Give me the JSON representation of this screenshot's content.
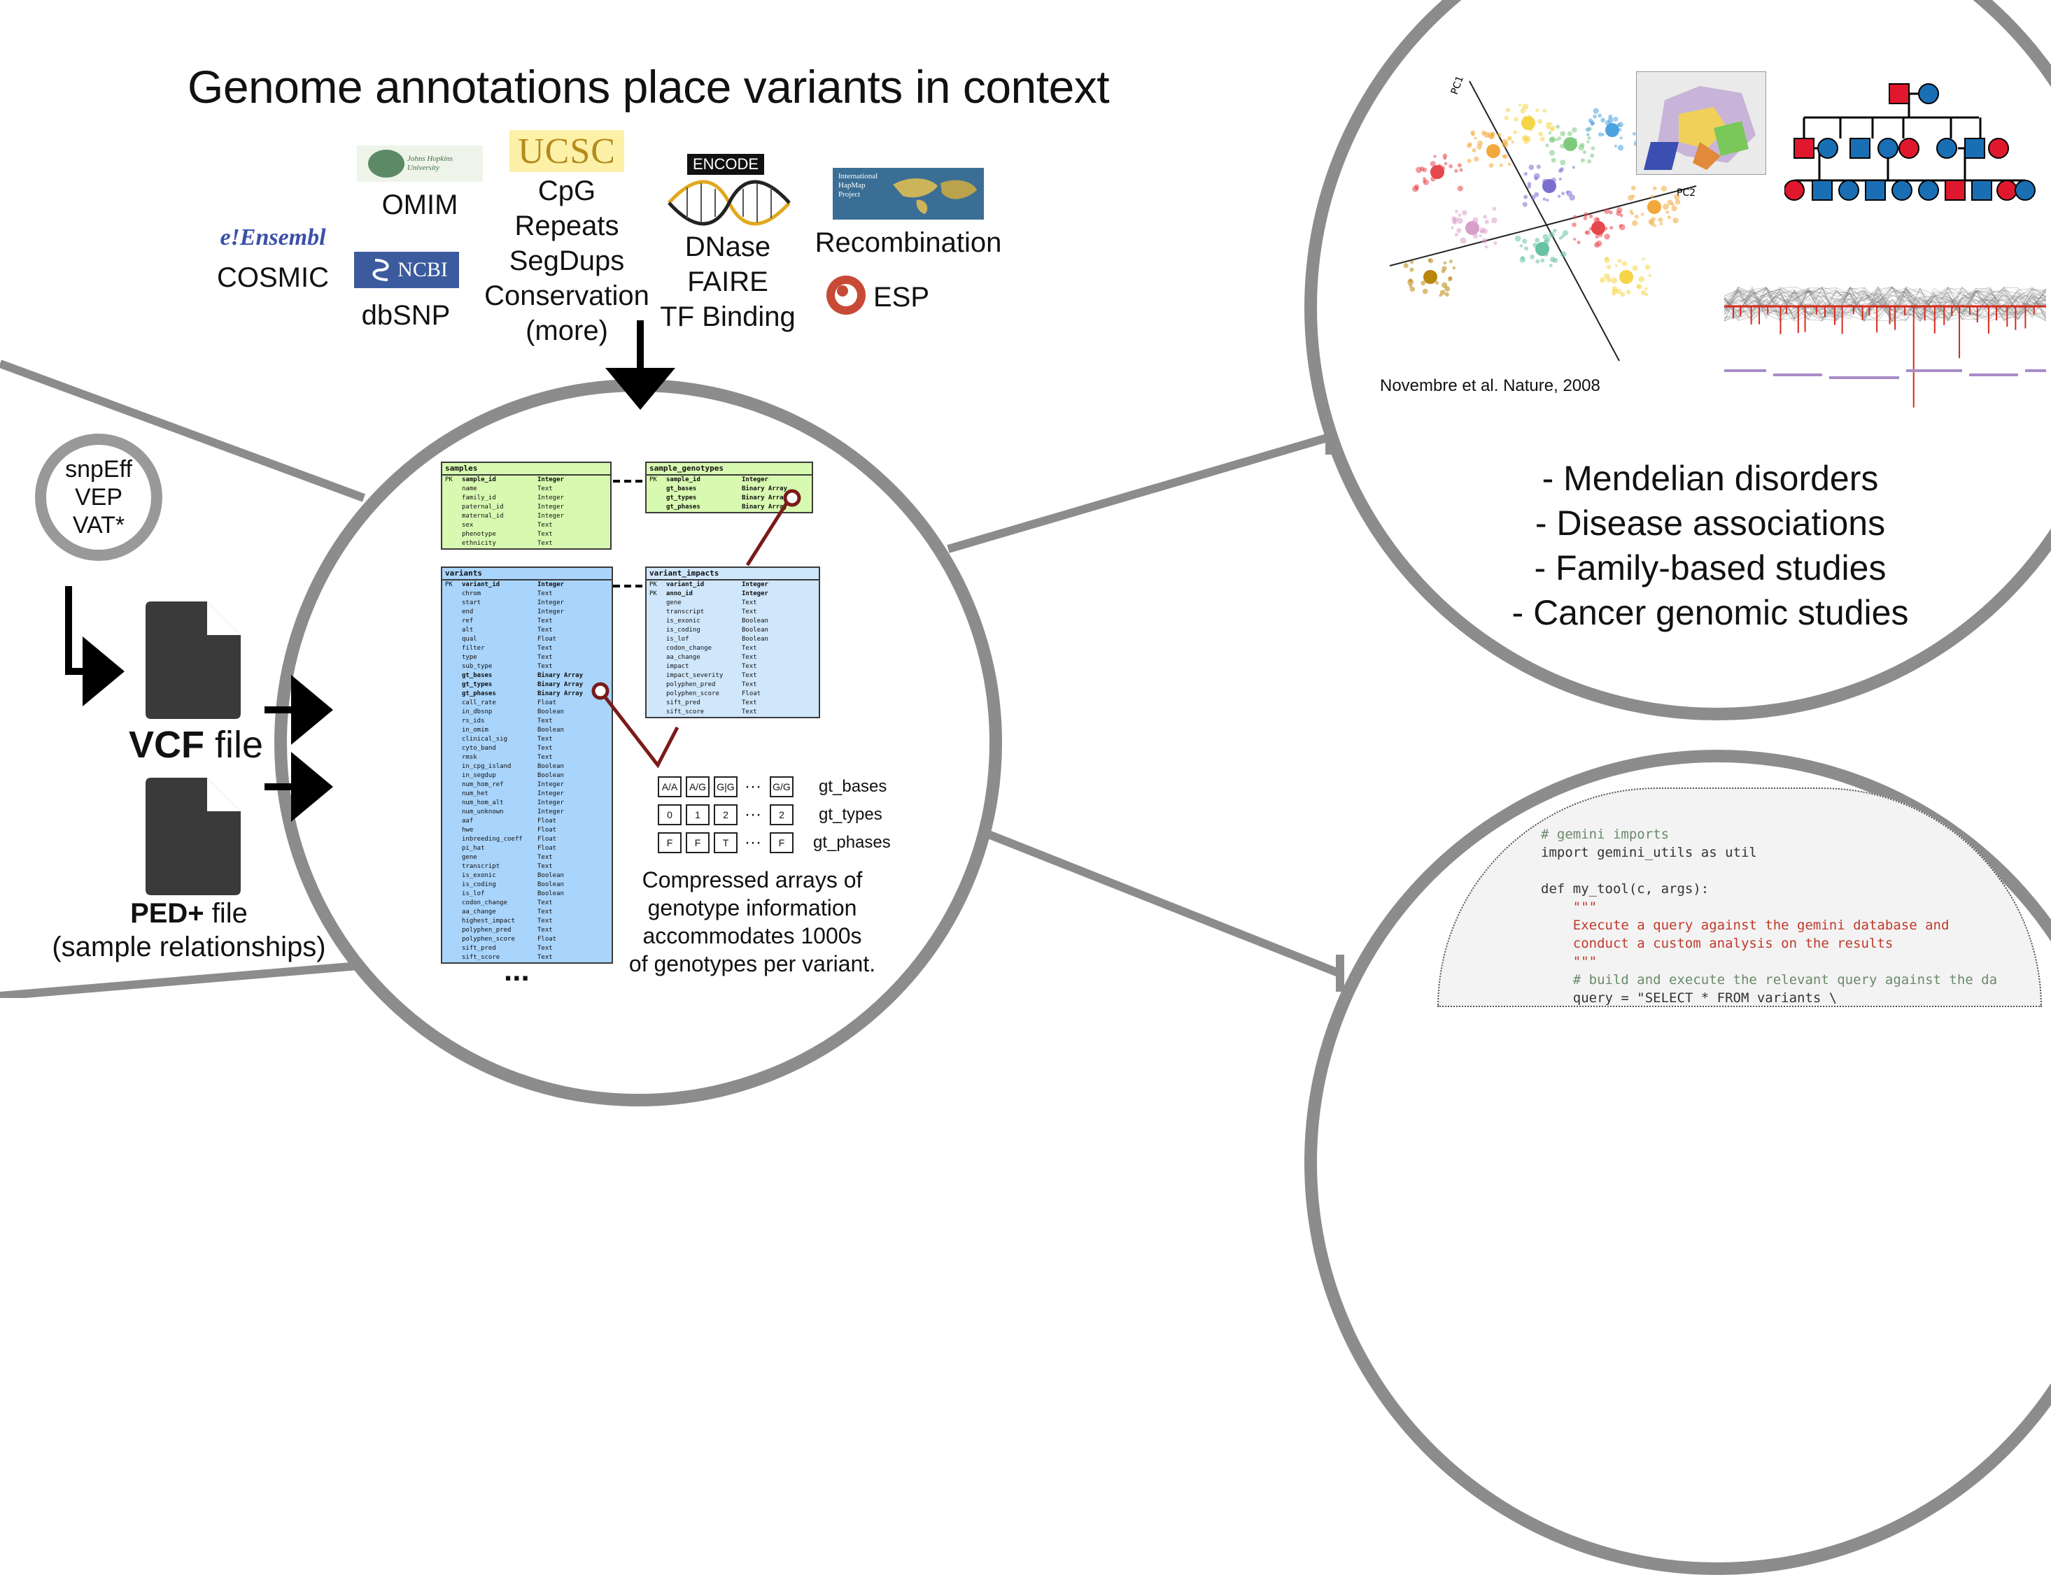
{
  "title": "Genome annotations place variants in context",
  "sources": {
    "ensembl_logo": "e!Ensembl",
    "cosmic": "COSMIC",
    "jhu_logo": "Johns Hopkins University",
    "omim": "OMIM",
    "ncbi_logo": "NCBI",
    "dbsnp": "dbSNP",
    "ucsc_logo": "UCSC",
    "ucsc_items": [
      "CpG",
      "Repeats",
      "SegDups",
      "Conservation",
      "(more)"
    ],
    "encode_logo": "ENCODE",
    "encode_items": [
      "DNase",
      "FAIRE",
      "TF Binding"
    ],
    "hapmap_logo": "International HapMap Project",
    "recombination": "Recombination",
    "esp": "ESP"
  },
  "annotators": [
    "snpEff",
    "VEP",
    "VAT*"
  ],
  "vcf": {
    "bold": "VCF",
    "rest": " file"
  },
  "ped": {
    "bold": "PED+",
    "rest": " file",
    "sub": "(sample relationships)"
  },
  "schema": {
    "samples": {
      "name": "samples",
      "rows": [
        [
          "PK",
          "sample_id",
          "Integer"
        ],
        [
          "",
          "name",
          "Text"
        ],
        [
          "",
          "family_id",
          "Integer"
        ],
        [
          "",
          "paternal_id",
          "Integer"
        ],
        [
          "",
          "maternal_id",
          "Integer"
        ],
        [
          "",
          "sex",
          "Text"
        ],
        [
          "",
          "phenotype",
          "Text"
        ],
        [
          "",
          "ethnicity",
          "Text"
        ]
      ]
    },
    "sample_genotypes": {
      "name": "sample_genotypes",
      "rows": [
        [
          "PK",
          "sample_id",
          "Integer"
        ],
        [
          "",
          "gt_bases",
          "Binary Array"
        ],
        [
          "",
          "gt_types",
          "Binary Array"
        ],
        [
          "",
          "gt_phases",
          "Binary Array"
        ]
      ]
    },
    "variants": {
      "name": "variants",
      "rows": [
        [
          "PK",
          "variant_id",
          "Integer"
        ],
        [
          "",
          "chrom",
          "Text"
        ],
        [
          "",
          "start",
          "Integer"
        ],
        [
          "",
          "end",
          "Integer"
        ],
        [
          "",
          "ref",
          "Text"
        ],
        [
          "",
          "alt",
          "Text"
        ],
        [
          "",
          "qual",
          "Float"
        ],
        [
          "",
          "filter",
          "Text"
        ],
        [
          "",
          "type",
          "Text"
        ],
        [
          "",
          "sub_type",
          "Text"
        ],
        [
          "",
          "gt_bases",
          "Binary Array"
        ],
        [
          "",
          "gt_types",
          "Binary Array"
        ],
        [
          "",
          "gt_phases",
          "Binary Array"
        ],
        [
          "",
          "call_rate",
          "Float"
        ],
        [
          "",
          "in_dbsnp",
          "Boolean"
        ],
        [
          "",
          "rs_ids",
          "Text"
        ],
        [
          "",
          "in_omim",
          "Boolean"
        ],
        [
          "",
          "clinical_sig",
          "Text"
        ],
        [
          "",
          "cyto_band",
          "Text"
        ],
        [
          "",
          "rmsk",
          "Text"
        ],
        [
          "",
          "in_cpg_island",
          "Boolean"
        ],
        [
          "",
          "in_segdup",
          "Boolean"
        ],
        [
          "",
          "num_hom_ref",
          "Integer"
        ],
        [
          "",
          "num_het",
          "Integer"
        ],
        [
          "",
          "num_hom_alt",
          "Integer"
        ],
        [
          "",
          "num_unknown",
          "Integer"
        ],
        [
          "",
          "aaf",
          "Float"
        ],
        [
          "",
          "hwe",
          "Float"
        ],
        [
          "",
          "inbreeding_coeff",
          "Float"
        ],
        [
          "",
          "pi_hat",
          "Float"
        ],
        [
          "",
          "gene",
          "Text"
        ],
        [
          "",
          "transcript",
          "Text"
        ],
        [
          "",
          "is_exonic",
          "Boolean"
        ],
        [
          "",
          "is_coding",
          "Boolean"
        ],
        [
          "",
          "is_lof",
          "Boolean"
        ],
        [
          "",
          "codon_change",
          "Text"
        ],
        [
          "",
          "aa_change",
          "Text"
        ],
        [
          "",
          "highest_impact",
          "Text"
        ],
        [
          "",
          "polyphen_pred",
          "Text"
        ],
        [
          "",
          "polyphen_score",
          "Float"
        ],
        [
          "",
          "sift_pred",
          "Text"
        ],
        [
          "",
          "sift_score",
          "Text"
        ]
      ]
    },
    "variant_impacts": {
      "name": "variant_impacts",
      "rows": [
        [
          "PK",
          "variant_id",
          "Integer"
        ],
        [
          "PK",
          "anno_id",
          "Integer"
        ],
        [
          "",
          "gene",
          "Text"
        ],
        [
          "",
          "transcript",
          "Text"
        ],
        [
          "",
          "is_exonic",
          "Boolean"
        ],
        [
          "",
          "is_coding",
          "Boolean"
        ],
        [
          "",
          "is_lof",
          "Boolean"
        ],
        [
          "",
          "codon_change",
          "Text"
        ],
        [
          "",
          "aa_change",
          "Text"
        ],
        [
          "",
          "impact",
          "Text"
        ],
        [
          "",
          "impact_severity",
          "Text"
        ],
        [
          "",
          "polyphen_pred",
          "Text"
        ],
        [
          "",
          "polyphen_score",
          "Float"
        ],
        [
          "",
          "sift_pred",
          "Text"
        ],
        [
          "",
          "sift_score",
          "Text"
        ]
      ]
    },
    "more": "..."
  },
  "genotype_arrays": {
    "gt_bases": {
      "label": "gt_bases",
      "cells": [
        "A/A",
        "A/G",
        "G|G"
      ],
      "last": "G/G"
    },
    "gt_types": {
      "label": "gt_types",
      "cells": [
        "0",
        "1",
        "2"
      ],
      "last": "2"
    },
    "gt_phases": {
      "label": "gt_phases",
      "cells": [
        "F",
        "F",
        "T"
      ],
      "last": "F"
    },
    "ellipsis": "···",
    "caption": [
      "Compressed arrays of",
      "genotype information",
      "accommodates 1000s",
      "of genotypes per variant."
    ]
  },
  "applications": {
    "citation": "Novembre et al. Nature, 2008",
    "pca_axes": [
      "PC1",
      "PC2"
    ],
    "uses": [
      "- Mendelian disorders",
      "- Disease associations",
      "- Family-based studies",
      "- Cancer genomic studies"
    ]
  },
  "code": {
    "lines": [
      {
        "t": "# gemini imports",
        "c": "comment"
      },
      {
        "t": "import gemini_utils as util",
        "c": "import"
      },
      {
        "t": "",
        "c": "plain"
      },
      {
        "t": "def my_tool(c, args):",
        "c": "def"
      },
      {
        "t": "    \"\"\"",
        "c": "string"
      },
      {
        "t": "    Execute a query against the gemini database and",
        "c": "string"
      },
      {
        "t": "    conduct a custom analysis on the results",
        "c": "string"
      },
      {
        "t": "    \"\"\"",
        "c": "string"
      },
      {
        "t": "    # build and execute the relevant query against the da",
        "c": "comment"
      },
      {
        "t": "    query = \"SELECT * FROM variants \\",
        "c": "query"
      }
    ]
  },
  "colors": {
    "circle_border": "#8c8c8c",
    "samples_fill": "#d7f9b0",
    "variants_fill": "#a9d4fb",
    "relation_line": "#7a1a1a",
    "pedigree_red": "#e0182d",
    "pedigree_blue": "#1a6fb4",
    "manhattan_red": "#d42a1c"
  }
}
